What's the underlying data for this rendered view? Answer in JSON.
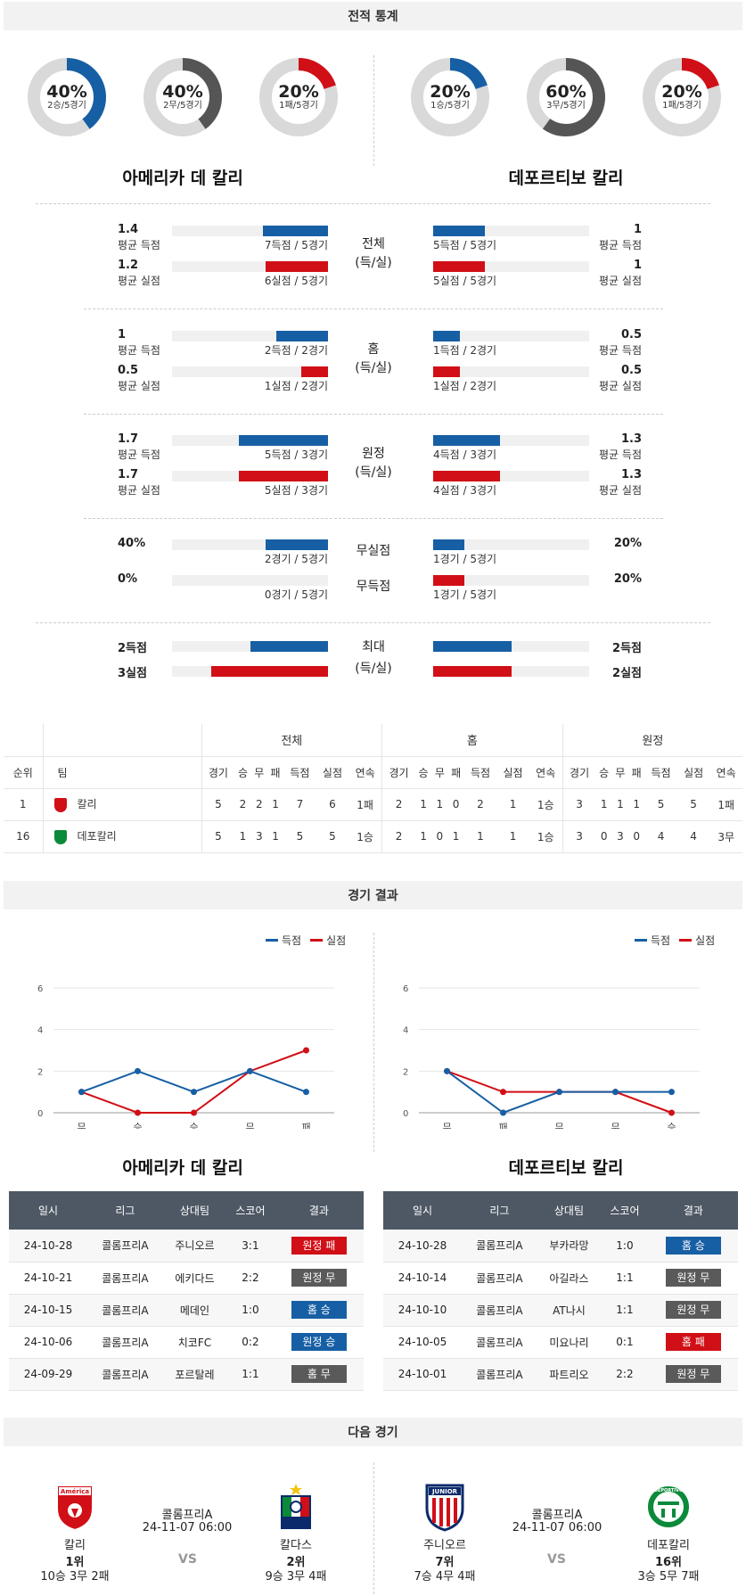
{
  "headers": {
    "stats": "전적 통계",
    "results": "경기 결과",
    "next": "다음 경기"
  },
  "teams": {
    "home_full": "아메리카 데 칼리",
    "away_full": "데포르티보 칼리"
  },
  "donuts": [
    {
      "pct": "40%",
      "sub": "2승/5경기",
      "value": 0.4,
      "color": "#175fa4"
    },
    {
      "pct": "40%",
      "sub": "2무/5경기",
      "value": 0.4,
      "color": "#555555"
    },
    {
      "pct": "20%",
      "sub": "1패/5경기",
      "value": 0.2,
      "color": "#d10f16"
    },
    {
      "pct": "20%",
      "sub": "1승/5경기",
      "value": 0.2,
      "color": "#175fa4"
    },
    {
      "pct": "60%",
      "sub": "3무/5경기",
      "value": 0.6,
      "color": "#555555"
    },
    {
      "pct": "20%",
      "sub": "1패/5경기",
      "value": 0.2,
      "color": "#d10f16"
    }
  ],
  "stat_groups": [
    {
      "center": [
        "전체",
        "(득/실)"
      ],
      "rows": [
        {
          "lv": "1.4",
          "ll": "평균 득점",
          "lsub": "7득점 / 5경기",
          "lfrac": 0.42,
          "rv": "1",
          "rl": "평균 득점",
          "rsub": "5득점 / 5경기",
          "rfrac": 0.33,
          "color": "blue"
        },
        {
          "lv": "1.2",
          "ll": "평균 실점",
          "lsub": "6실점 / 5경기",
          "lfrac": 0.4,
          "rv": "1",
          "rl": "평균 실점",
          "rsub": "5실점 / 5경기",
          "rfrac": 0.33,
          "color": "red"
        }
      ]
    },
    {
      "center": [
        "홈",
        "(득/실)"
      ],
      "rows": [
        {
          "lv": "1",
          "ll": "평균 득점",
          "lsub": "2득점 / 2경기",
          "lfrac": 0.33,
          "rv": "0.5",
          "rl": "평균 득점",
          "rsub": "1득점 / 2경기",
          "rfrac": 0.17,
          "color": "blue"
        },
        {
          "lv": "0.5",
          "ll": "평균 실점",
          "lsub": "1실점 / 2경기",
          "lfrac": 0.17,
          "rv": "0.5",
          "rl": "평균 실점",
          "rsub": "1실점 / 2경기",
          "rfrac": 0.17,
          "color": "red"
        }
      ]
    },
    {
      "center": [
        "원정",
        "(득/실)"
      ],
      "rows": [
        {
          "lv": "1.7",
          "ll": "평균 득점",
          "lsub": "5득점 / 3경기",
          "lfrac": 0.57,
          "rv": "1.3",
          "rl": "평균 득점",
          "rsub": "4득점 / 3경기",
          "rfrac": 0.43,
          "color": "blue"
        },
        {
          "lv": "1.7",
          "ll": "평균 실점",
          "lsub": "5실점 / 3경기",
          "lfrac": 0.57,
          "rv": "1.3",
          "rl": "평균 실점",
          "rsub": "4실점 / 3경기",
          "rfrac": 0.43,
          "color": "red"
        }
      ]
    },
    {
      "center": [
        "무실점",
        "무득점"
      ],
      "rows": [
        {
          "lv": "40%",
          "ll": "",
          "lsub": "2경기 / 5경기",
          "lfrac": 0.4,
          "rv": "20%",
          "rl": "",
          "rsub": "1경기 / 5경기",
          "rfrac": 0.2,
          "color": "blue"
        },
        {
          "lv": "0%",
          "ll": "",
          "lsub": "0경기 / 5경기",
          "lfrac": 0.0,
          "rv": "20%",
          "rl": "",
          "rsub": "1경기 / 5경기",
          "rfrac": 0.2,
          "color": "red"
        }
      ]
    }
  ],
  "max_group": {
    "center": [
      "최대",
      "(득/실)"
    ],
    "rows": [
      {
        "lv": "2득점",
        "rv": "2득점",
        "lfrac": 0.5,
        "rfrac": 0.5,
        "color": "blue"
      },
      {
        "lv": "3실점",
        "rv": "2실점",
        "lfrac": 0.75,
        "rfrac": 0.5,
        "color": "red"
      }
    ]
  },
  "standings": {
    "group_headers": [
      "전체",
      "홈",
      "원정"
    ],
    "cols": [
      "순위",
      "팀",
      "경기",
      "승",
      "무",
      "패",
      "득점",
      "실점",
      "연속",
      "경기",
      "승",
      "무",
      "패",
      "득점",
      "실점",
      "연속",
      "경기",
      "승",
      "무",
      "패",
      "득점",
      "실점",
      "연속"
    ],
    "rows": [
      {
        "rank": "1",
        "team": "칼리",
        "crest": "red",
        "cells": [
          "5",
          "2",
          "2",
          "1",
          "7",
          "6",
          "1패",
          "2",
          "1",
          "1",
          "0",
          "2",
          "1",
          "1승",
          "3",
          "1",
          "1",
          "1",
          "5",
          "5",
          "1패"
        ]
      },
      {
        "rank": "16",
        "team": "데포칼리",
        "crest": "green",
        "cells": [
          "5",
          "1",
          "3",
          "1",
          "5",
          "5",
          "1승",
          "2",
          "1",
          "0",
          "1",
          "1",
          "1",
          "1승",
          "3",
          "0",
          "3",
          "0",
          "4",
          "4",
          "3무"
        ]
      }
    ]
  },
  "legend": {
    "score": "득점",
    "concede": "실점",
    "score_color": "#175fa4",
    "concede_color": "#d10f16"
  },
  "line_charts": [
    {
      "type": "line",
      "categories": [
        "무",
        "승",
        "승",
        "무",
        "패"
      ],
      "yticks": [
        "6",
        "4",
        "2",
        "0"
      ],
      "ylim": [
        0,
        6
      ],
      "series": [
        {
          "name": "득점",
          "values": [
            1,
            2,
            1,
            2,
            1
          ],
          "color": "#175fa4"
        },
        {
          "name": "실점",
          "values": [
            1,
            0,
            0,
            2,
            3
          ],
          "color": "#d10f16"
        }
      ]
    },
    {
      "type": "line",
      "categories": [
        "무",
        "패",
        "무",
        "무",
        "승"
      ],
      "yticks": [
        "6",
        "4",
        "2",
        "0"
      ],
      "ylim": [
        0,
        6
      ],
      "series": [
        {
          "name": "득점",
          "values": [
            2,
            0,
            1,
            1,
            1
          ],
          "color": "#175fa4"
        },
        {
          "name": "실점",
          "values": [
            2,
            1,
            1,
            1,
            0
          ],
          "color": "#d10f16"
        }
      ]
    }
  ],
  "results": {
    "cols": [
      "일시",
      "리그",
      "상대팀",
      "스코어",
      "결과"
    ],
    "home": [
      [
        "24-10-28",
        "콜롬프리A",
        "주니오르",
        "3:1",
        "원정 패",
        "red"
      ],
      [
        "24-10-21",
        "콜롬프리A",
        "에키다드",
        "2:2",
        "원정 무",
        "gray"
      ],
      [
        "24-10-15",
        "콜롬프리A",
        "메데인",
        "1:0",
        "홈 승",
        "blue"
      ],
      [
        "24-10-06",
        "콜롬프리A",
        "치코FC",
        "0:2",
        "원정 승",
        "blue"
      ],
      [
        "24-09-29",
        "콜롬프리A",
        "포르탈레",
        "1:1",
        "홈 무",
        "gray"
      ]
    ],
    "away": [
      [
        "24-10-28",
        "콜롬프리A",
        "부카라망",
        "1:0",
        "홈 승",
        "blue"
      ],
      [
        "24-10-14",
        "콜롬프리A",
        "아길라스",
        "1:1",
        "원정 무",
        "gray"
      ],
      [
        "24-10-10",
        "콜롬프리A",
        "AT나시",
        "1:1",
        "원정 무",
        "gray"
      ],
      [
        "24-10-05",
        "콜롬프리A",
        "미요나리",
        "0:1",
        "홈 패",
        "red"
      ],
      [
        "24-10-01",
        "콜롬프리A",
        "파트리오",
        "2:2",
        "원정 무",
        "gray"
      ]
    ]
  },
  "next_matches": [
    {
      "league": "콜롬프리A",
      "datetime": "24-11-07 06:00",
      "vs": "VS",
      "home": {
        "name": "칼리",
        "rank": "1위",
        "record": "10승 3무 2패",
        "logo_text": "América"
      },
      "away": {
        "name": "칼다스",
        "rank": "2위",
        "record": "9승 3무 4패",
        "logo_text": ""
      }
    },
    {
      "league": "콜롬프리A",
      "datetime": "24-11-07 06:00",
      "vs": "VS",
      "home": {
        "name": "주니오르",
        "rank": "7위",
        "record": "7승 4무 4패",
        "logo_text": "JUNIOR"
      },
      "away": {
        "name": "데포칼리",
        "rank": "16위",
        "record": "3승 5무 7패",
        "logo_text": "DEPORTIVO"
      }
    }
  ]
}
